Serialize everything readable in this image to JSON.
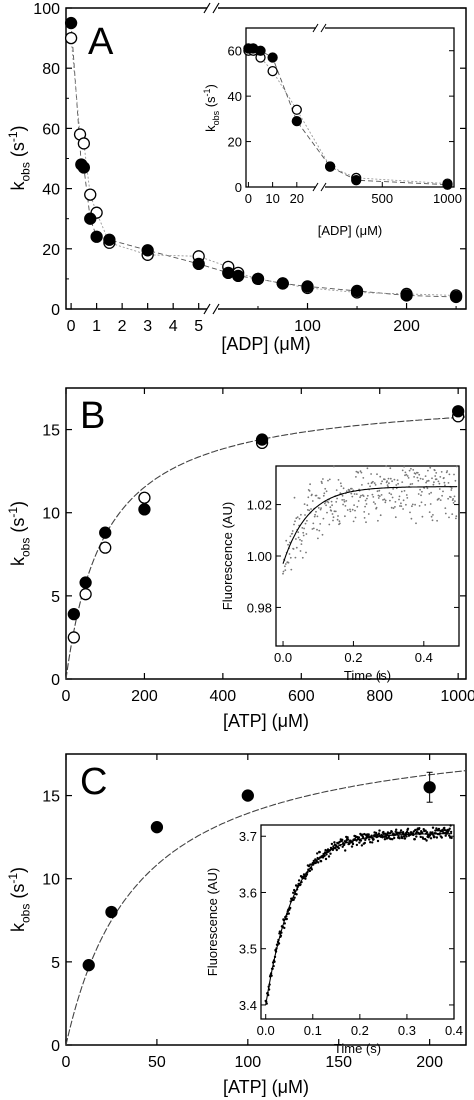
{
  "chart_data": [
    {
      "panel": "A",
      "type": "scatter",
      "panel_label": "A",
      "xlabel": "[ADP] (μM)",
      "ylabel": "k_obs (s⁻¹)",
      "ylim": [
        0,
        100
      ],
      "x_segments": [
        {
          "range": [
            -0.2,
            5.6
          ],
          "ticks": [
            0,
            1,
            2,
            3,
            4,
            5
          ]
        },
        {
          "range": [
            5.6,
            260
          ],
          "ticks": [
            100,
            200
          ]
        }
      ],
      "axis_break": "//",
      "yticks": [
        0,
        20,
        40,
        60,
        80,
        100
      ],
      "series": [
        {
          "marker": "filled-circle",
          "points": [
            [
              0,
              95
            ],
            [
              0.4,
              48
            ],
            [
              0.5,
              47
            ],
            [
              0.75,
              30
            ],
            [
              1,
              24
            ],
            [
              1.5,
              23
            ],
            [
              3,
              19.5
            ],
            [
              5,
              15
            ],
            [
              20,
              12
            ],
            [
              30,
              11
            ],
            [
              50,
              10
            ],
            [
              75,
              8.5
            ],
            [
              100,
              7.5
            ],
            [
              150,
              6
            ],
            [
              200,
              4.5
            ],
            [
              250,
              4
            ]
          ]
        },
        {
          "marker": "open-circle",
          "points": [
            [
              0,
              90
            ],
            [
              0.35,
              58
            ],
            [
              0.5,
              55
            ],
            [
              0.75,
              38
            ],
            [
              1,
              32
            ],
            [
              1.5,
              22
            ],
            [
              3,
              18
            ],
            [
              5,
              17.5
            ],
            [
              20,
              14
            ],
            [
              30,
              12
            ],
            [
              50,
              10
            ],
            [
              75,
              8.5
            ],
            [
              100,
              7
            ],
            [
              150,
              5.5
            ],
            [
              200,
              5
            ],
            [
              250,
              4.5
            ]
          ]
        }
      ],
      "inset": {
        "type": "scatter",
        "xlabel": "[ADP] (μM)",
        "ylabel": "k_obs (s⁻¹)",
        "ylim": [
          0,
          70
        ],
        "yticks": [
          0,
          20,
          40,
          60
        ],
        "x_segments": [
          {
            "range": [
              -1,
              30
            ],
            "ticks": [
              0,
              10,
              20
            ]
          },
          {
            "range": [
              30,
              1050
            ],
            "ticks": [
              500,
              1000
            ]
          }
        ],
        "axis_break": "//",
        "series": [
          {
            "marker": "filled-circle",
            "points": [
              [
                0,
                61
              ],
              [
                2,
                61
              ],
              [
                5,
                60
              ],
              [
                10,
                57
              ],
              [
                20,
                29
              ],
              [
                100,
                9
              ],
              [
                300,
                3
              ],
              [
                1000,
                1
              ]
            ]
          },
          {
            "marker": "open-circle",
            "points": [
              [
                0,
                60
              ],
              [
                2,
                60
              ],
              [
                5,
                57
              ],
              [
                10,
                51
              ],
              [
                20,
                34
              ],
              [
                100,
                9
              ],
              [
                300,
                4
              ],
              [
                1000,
                1.5
              ]
            ]
          }
        ]
      }
    },
    {
      "panel": "B",
      "type": "scatter",
      "panel_label": "B",
      "xlabel": "[ATP] (μM)",
      "ylabel": "k_obs (s⁻¹)",
      "xlim": [
        0,
        1020
      ],
      "ylim": [
        0,
        17.5
      ],
      "xticks": [
        0,
        200,
        400,
        600,
        800,
        1000
      ],
      "yticks": [
        0,
        5,
        10,
        15
      ],
      "fit": {
        "kmax": 17.3,
        "K": 100
      },
      "series": [
        {
          "marker": "filled-circle",
          "points": [
            [
              20,
              3.9
            ],
            [
              50,
              5.8
            ],
            [
              100,
              8.8
            ],
            [
              200,
              10.2
            ],
            [
              500,
              14.4
            ],
            [
              1000,
              16.1
            ]
          ]
        },
        {
          "marker": "open-circle",
          "points": [
            [
              20,
              2.5
            ],
            [
              50,
              5.1
            ],
            [
              100,
              7.9
            ],
            [
              200,
              10.9
            ],
            [
              500,
              14.2
            ],
            [
              1000,
              15.8
            ]
          ]
        }
      ],
      "inset": {
        "type": "scatter",
        "xlabel": "Time (s)",
        "ylabel": "Fluorescence (AU)",
        "xlim": [
          -0.02,
          0.5
        ],
        "ylim": [
          0.965,
          1.035
        ],
        "xticks": [
          0.0,
          0.2,
          0.4
        ],
        "yticks": [
          0.98,
          1.0,
          1.02
        ],
        "xtick_labels": [
          "0.0",
          "0.2",
          "0.4"
        ],
        "ytick_labels": [
          "0.98",
          "1.00",
          "1.02"
        ],
        "trace": {
          "y0": 0.997,
          "yinf": 1.027,
          "k": 14,
          "noise": 0.009
        }
      }
    },
    {
      "panel": "C",
      "type": "scatter",
      "panel_label": "C",
      "xlabel": "[ATP] (μM)",
      "ylabel": "k_obs (s⁻¹)",
      "xlim": [
        0,
        220
      ],
      "ylim": [
        0,
        17.5
      ],
      "xticks": [
        0,
        50,
        100,
        150,
        200
      ],
      "yticks": [
        0,
        5,
        10,
        15
      ],
      "fit": {
        "kmax": 19.5,
        "K": 40
      },
      "series": [
        {
          "marker": "filled-circle",
          "points": [
            [
              12.5,
              4.8
            ],
            [
              25,
              8.0
            ],
            [
              50,
              13.1
            ],
            [
              100,
              15.0
            ],
            [
              200,
              15.5
            ]
          ],
          "error": [
            0,
            0,
            0,
            0,
            0.9
          ]
        }
      ],
      "inset": {
        "type": "scatter",
        "xlabel": "Time (s)",
        "ylabel": "Fluorescence (AU)",
        "xlim": [
          -0.01,
          0.4
        ],
        "ylim": [
          3.375,
          3.72
        ],
        "xticks": [
          0.0,
          0.1,
          0.2,
          0.3,
          0.4
        ],
        "yticks": [
          3.4,
          3.5,
          3.6,
          3.7
        ],
        "xtick_labels": [
          "0.0",
          "0.1",
          "0.2",
          "0.3",
          "0.4"
        ],
        "ytick_labels": [
          "3.4",
          "3.5",
          "3.6",
          "3.7"
        ],
        "trace": {
          "y0": 3.4,
          "yinf": 3.705,
          "k": 17,
          "noise": 0.008
        }
      }
    }
  ]
}
